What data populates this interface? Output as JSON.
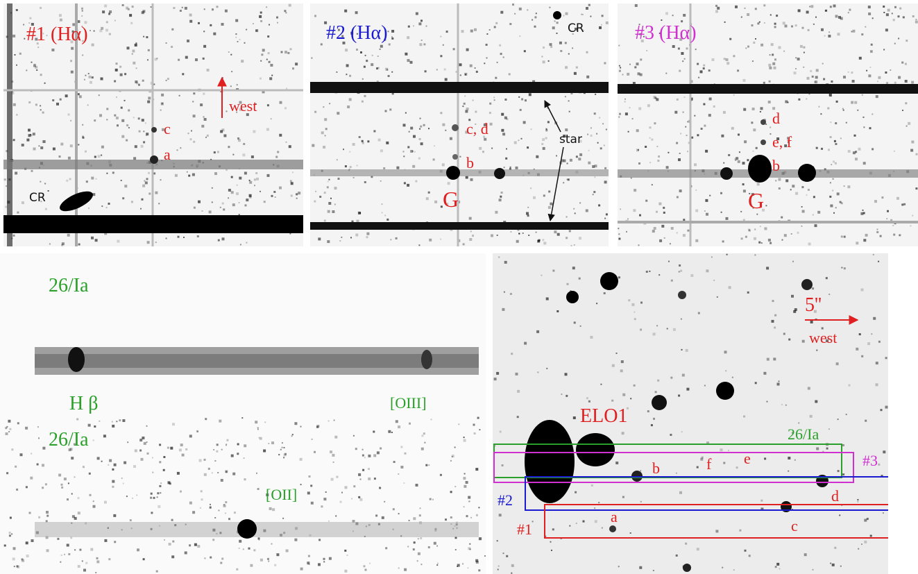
{
  "spectra_halpha": [
    {
      "title": "#1 (Hα)",
      "cosmic_ray": "CR",
      "direction": "west",
      "features": [
        "c",
        "a"
      ]
    },
    {
      "title": "#2 (Hα)",
      "cosmic_ray": "CR",
      "star": "star",
      "features": [
        "c, d",
        "b",
        "G"
      ]
    },
    {
      "title": "#3 (Hα)",
      "features": [
        "d",
        "e, f",
        "b",
        "G"
      ]
    }
  ],
  "spectrum_26_1a": {
    "upper_label": "26/Ia",
    "line_hb": "H β",
    "line_oiii": "[OIII]",
    "lower_label": "26/Ia",
    "line_oii": "[OII]"
  },
  "image": {
    "scale": "5''",
    "direction": "west",
    "object": "ELO1",
    "slit_26_1a": "26/Ia",
    "slits": [
      "#3",
      "#2",
      "#1"
    ],
    "features": [
      "a",
      "b",
      "c",
      "d",
      "e",
      "f"
    ]
  }
}
